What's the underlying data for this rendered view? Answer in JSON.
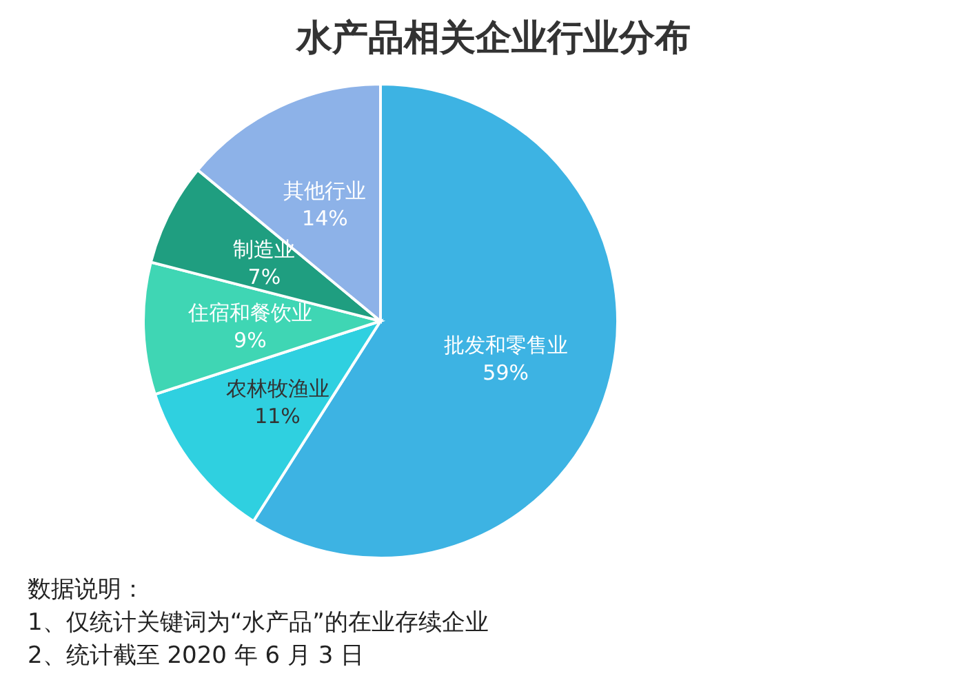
{
  "chart_data": {
    "type": "pie",
    "title": "水产品相关企业行业分布",
    "categories": [
      "批发和零售业",
      "农林牧渔业",
      "住宿和餐饮业",
      "制造业",
      "其他行业"
    ],
    "values": [
      59,
      11,
      9,
      7,
      14
    ],
    "colors": [
      "#3db3e3",
      "#2fd0e0",
      "#3fd6b4",
      "#1f9e80",
      "#8db2e8"
    ],
    "value_labels": [
      "59%",
      "11%",
      "9%",
      "7%",
      "14%"
    ],
    "annotations": [
      "数据说明：",
      "1、仅统计关键词为“水产品”的在业存续企业",
      "2、统计截至 2020 年 6 月 3 日"
    ]
  }
}
